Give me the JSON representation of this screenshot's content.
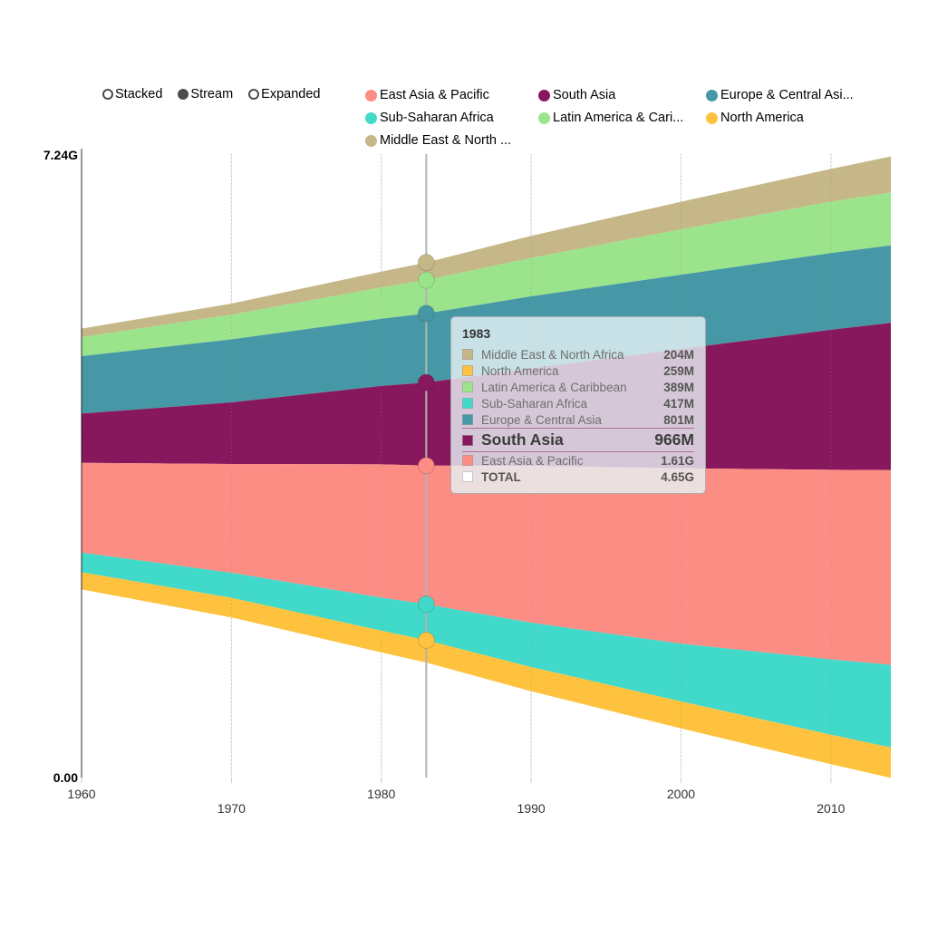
{
  "controls": {
    "items": [
      {
        "label": "Stacked",
        "selected": false
      },
      {
        "label": "Stream",
        "selected": true
      },
      {
        "label": "Expanded",
        "selected": false
      }
    ]
  },
  "legend": {
    "items": [
      {
        "label": "East Asia & Pacific",
        "color": "#fb8d84"
      },
      {
        "label": "South Asia",
        "color": "#88185d"
      },
      {
        "label": "Europe & Central Asi...",
        "color": "#4798a6"
      },
      {
        "label": "Sub-Saharan Africa",
        "color": "#41d9ca"
      },
      {
        "label": "Latin America & Cari...",
        "color": "#9be48b"
      },
      {
        "label": "North America",
        "color": "#fec23e"
      },
      {
        "label": "Middle East & North ...",
        "color": "#c5b787"
      }
    ]
  },
  "chart_data": {
    "type": "area",
    "layout": "stream",
    "unit": "millions of people",
    "x": [
      1960,
      1970,
      1980,
      1983,
      1990,
      2000,
      2010,
      2014
    ],
    "series": [
      {
        "name": "Middle East & North Africa",
        "color": "#c5b787",
        "values": [
          100,
          128,
          183,
          204,
          256,
          321,
          381,
          418
        ]
      },
      {
        "name": "Latin America & Caribbean",
        "color": "#9be48b",
        "values": [
          220,
          287,
          364,
          389,
          445,
          526,
          597,
          615
        ]
      },
      {
        "name": "Europe & Central Asia",
        "color": "#4798a6",
        "values": [
          667,
          732,
          780,
          801,
          836,
          862,
          890,
          900
        ]
      },
      {
        "name": "South Asia",
        "color": "#88185d",
        "values": [
          572,
          715,
          910,
          966,
          1133,
          1387,
          1626,
          1710
        ]
      },
      {
        "name": "East Asia & Pacific",
        "color": "#fb8d84",
        "values": [
          1043,
          1263,
          1547,
          1610,
          1821,
          2036,
          2201,
          2260
        ]
      },
      {
        "name": "Sub-Saharan Africa",
        "color": "#41d9ca",
        "values": [
          228,
          292,
          385,
          417,
          515,
          670,
          875,
          960
        ]
      },
      {
        "name": "North America",
        "color": "#fec23e",
        "values": [
          199,
          227,
          252,
          259,
          280,
          313,
          343,
          353
        ]
      }
    ],
    "y_axis": {
      "max_label": "7.24G",
      "min_label": "0.00",
      "max_value_millions": 7240
    },
    "x_ticks": [
      {
        "year": 1960,
        "label": "1960"
      },
      {
        "year": 1970,
        "label": "1970"
      },
      {
        "year": 1980,
        "label": "1980"
      },
      {
        "year": 1990,
        "label": "1990"
      },
      {
        "year": 2000,
        "label": "2000"
      },
      {
        "year": 2010,
        "label": "2010"
      }
    ],
    "grid": true,
    "legend_position": "top",
    "hover": {
      "year": 1983,
      "label": "1983"
    }
  },
  "tooltip": {
    "title": "1983",
    "rows": [
      {
        "name": "Middle East & North Africa",
        "value": "204M",
        "color": "#c5b787",
        "highlight": false,
        "total": false
      },
      {
        "name": "North America",
        "value": "259M",
        "color": "#fec23e",
        "highlight": false,
        "total": false
      },
      {
        "name": "Latin America & Caribbean",
        "value": "389M",
        "color": "#9be48b",
        "highlight": false,
        "total": false
      },
      {
        "name": "Sub-Saharan Africa",
        "value": "417M",
        "color": "#41d9ca",
        "highlight": false,
        "total": false
      },
      {
        "name": "Europe & Central Asia",
        "value": "801M",
        "color": "#4798a6",
        "highlight": false,
        "total": false
      },
      {
        "name": "South Asia",
        "value": "966M",
        "color": "#88185d",
        "highlight": true,
        "total": false
      },
      {
        "name": "East Asia & Pacific",
        "value": "1.61G",
        "color": "#fb8d84",
        "highlight": false,
        "total": false
      },
      {
        "name": "TOTAL",
        "value": "4.65G",
        "color": "#ffffff",
        "highlight": false,
        "total": true
      }
    ]
  }
}
